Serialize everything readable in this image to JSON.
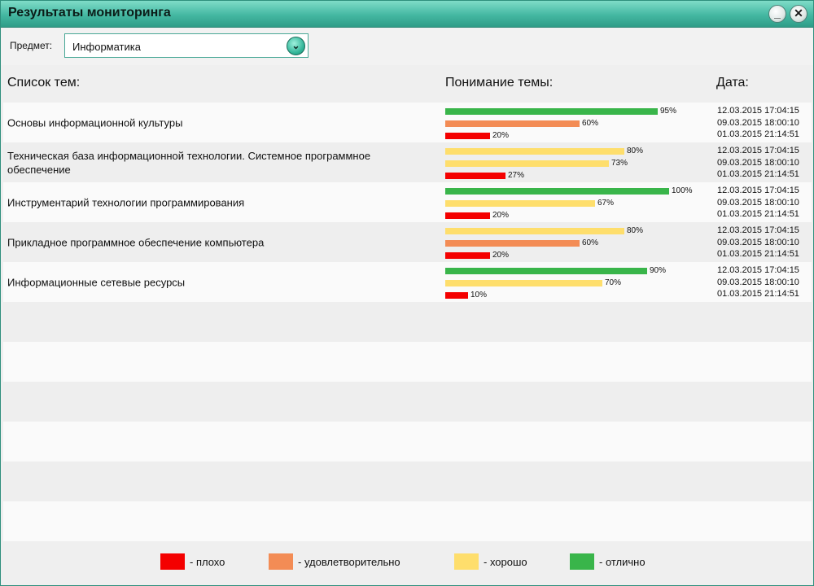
{
  "window": {
    "title": "Результаты мониторинга",
    "minimize_label": "_",
    "close_label": "✕"
  },
  "filter": {
    "label": "Предмет:",
    "selected": "Информатика",
    "dropdown_icon": "chevron-down-icon"
  },
  "columns": {
    "topics": "Список тем:",
    "understanding": "Понимание темы:",
    "date": "Дата:"
  },
  "colors": {
    "poor": "#f40000",
    "satisfactory": "#f38c55",
    "good": "#fede6c",
    "excellent": "#39b54a"
  },
  "rows": [
    {
      "topic": "Основы информационной культуры",
      "results": [
        {
          "value": 95,
          "label": "95%",
          "level": "excellent"
        },
        {
          "value": 60,
          "label": "60%",
          "level": "satisfactory"
        },
        {
          "value": 20,
          "label": "20%",
          "level": "poor"
        }
      ],
      "dates": [
        "12.03.2015 17:04:15",
        "09.03.2015 18:00:10",
        "01.03.2015 21:14:51"
      ]
    },
    {
      "topic": "Техническая база информационной технологии. Системное программное обеспечение",
      "results": [
        {
          "value": 80,
          "label": "80%",
          "level": "good"
        },
        {
          "value": 73,
          "label": "73%",
          "level": "good"
        },
        {
          "value": 27,
          "label": "27%",
          "level": "poor"
        }
      ],
      "dates": [
        "12.03.2015 17:04:15",
        "09.03.2015 18:00:10",
        "01.03.2015 21:14:51"
      ]
    },
    {
      "topic": "Инструментарий технологии программирования",
      "results": [
        {
          "value": 100,
          "label": "100%",
          "level": "excellent"
        },
        {
          "value": 67,
          "label": "67%",
          "level": "good"
        },
        {
          "value": 20,
          "label": "20%",
          "level": "poor"
        }
      ],
      "dates": [
        "12.03.2015 17:04:15",
        "09.03.2015 18:00:10",
        "01.03.2015 21:14:51"
      ]
    },
    {
      "topic": "Прикладное программное обеспечение компьютера",
      "results": [
        {
          "value": 80,
          "label": "80%",
          "level": "good"
        },
        {
          "value": 60,
          "label": "60%",
          "level": "satisfactory"
        },
        {
          "value": 20,
          "label": "20%",
          "level": "poor"
        }
      ],
      "dates": [
        "12.03.2015 17:04:15",
        "09.03.2015 18:00:10",
        "01.03.2015 21:14:51"
      ]
    },
    {
      "topic": "Информационные сетевые ресурсы",
      "results": [
        {
          "value": 90,
          "label": "90%",
          "level": "excellent"
        },
        {
          "value": 70,
          "label": "70%",
          "level": "good"
        },
        {
          "value": 10,
          "label": "10%",
          "level": "poor"
        }
      ],
      "dates": [
        "12.03.2015 17:04:15",
        "09.03.2015 18:00:10",
        "01.03.2015 21:14:51"
      ]
    }
  ],
  "legend": [
    {
      "level": "poor",
      "label": "- плохо"
    },
    {
      "level": "satisfactory",
      "label": "- удовлетворительно"
    },
    {
      "level": "good",
      "label": "- хорошо"
    },
    {
      "level": "excellent",
      "label": "- отлично"
    }
  ]
}
